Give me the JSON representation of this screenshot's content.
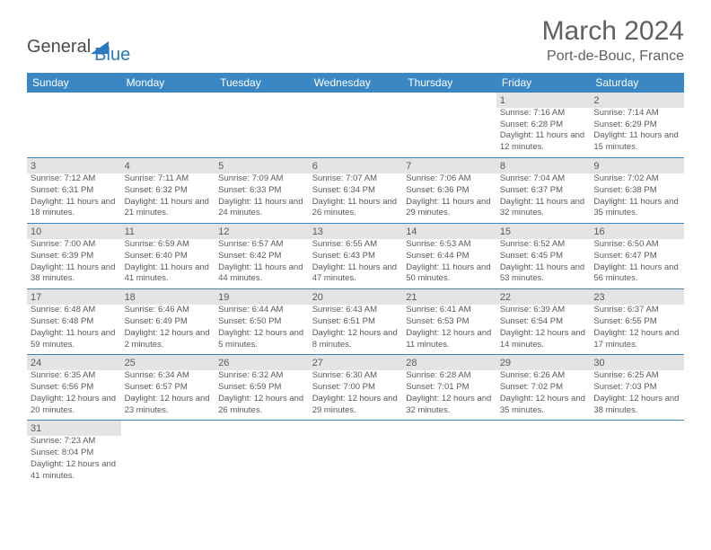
{
  "brand": {
    "part1": "General",
    "part2": "Blue"
  },
  "title": "March 2024",
  "location": "Port-de-Bouc, France",
  "colors": {
    "header_bg": "#3a87c4",
    "header_fg": "#ffffff",
    "daynum_bg": "#e4e4e4",
    "row_divider": "#3a87c4",
    "text": "#5a5a5a",
    "brand_blue": "#2a78bd",
    "brand_gray": "#4a4a4a"
  },
  "weekdays": [
    "Sunday",
    "Monday",
    "Tuesday",
    "Wednesday",
    "Thursday",
    "Friday",
    "Saturday"
  ],
  "weeks": [
    [
      null,
      null,
      null,
      null,
      null,
      {
        "n": "1",
        "sr": "7:16 AM",
        "ss": "6:28 PM",
        "dl": "11 hours and 12 minutes."
      },
      {
        "n": "2",
        "sr": "7:14 AM",
        "ss": "6:29 PM",
        "dl": "11 hours and 15 minutes."
      }
    ],
    [
      {
        "n": "3",
        "sr": "7:12 AM",
        "ss": "6:31 PM",
        "dl": "11 hours and 18 minutes."
      },
      {
        "n": "4",
        "sr": "7:11 AM",
        "ss": "6:32 PM",
        "dl": "11 hours and 21 minutes."
      },
      {
        "n": "5",
        "sr": "7:09 AM",
        "ss": "6:33 PM",
        "dl": "11 hours and 24 minutes."
      },
      {
        "n": "6",
        "sr": "7:07 AM",
        "ss": "6:34 PM",
        "dl": "11 hours and 26 minutes."
      },
      {
        "n": "7",
        "sr": "7:06 AM",
        "ss": "6:36 PM",
        "dl": "11 hours and 29 minutes."
      },
      {
        "n": "8",
        "sr": "7:04 AM",
        "ss": "6:37 PM",
        "dl": "11 hours and 32 minutes."
      },
      {
        "n": "9",
        "sr": "7:02 AM",
        "ss": "6:38 PM",
        "dl": "11 hours and 35 minutes."
      }
    ],
    [
      {
        "n": "10",
        "sr": "7:00 AM",
        "ss": "6:39 PM",
        "dl": "11 hours and 38 minutes."
      },
      {
        "n": "11",
        "sr": "6:59 AM",
        "ss": "6:40 PM",
        "dl": "11 hours and 41 minutes."
      },
      {
        "n": "12",
        "sr": "6:57 AM",
        "ss": "6:42 PM",
        "dl": "11 hours and 44 minutes."
      },
      {
        "n": "13",
        "sr": "6:55 AM",
        "ss": "6:43 PM",
        "dl": "11 hours and 47 minutes."
      },
      {
        "n": "14",
        "sr": "6:53 AM",
        "ss": "6:44 PM",
        "dl": "11 hours and 50 minutes."
      },
      {
        "n": "15",
        "sr": "6:52 AM",
        "ss": "6:45 PM",
        "dl": "11 hours and 53 minutes."
      },
      {
        "n": "16",
        "sr": "6:50 AM",
        "ss": "6:47 PM",
        "dl": "11 hours and 56 minutes."
      }
    ],
    [
      {
        "n": "17",
        "sr": "6:48 AM",
        "ss": "6:48 PM",
        "dl": "11 hours and 59 minutes."
      },
      {
        "n": "18",
        "sr": "6:46 AM",
        "ss": "6:49 PM",
        "dl": "12 hours and 2 minutes."
      },
      {
        "n": "19",
        "sr": "6:44 AM",
        "ss": "6:50 PM",
        "dl": "12 hours and 5 minutes."
      },
      {
        "n": "20",
        "sr": "6:43 AM",
        "ss": "6:51 PM",
        "dl": "12 hours and 8 minutes."
      },
      {
        "n": "21",
        "sr": "6:41 AM",
        "ss": "6:53 PM",
        "dl": "12 hours and 11 minutes."
      },
      {
        "n": "22",
        "sr": "6:39 AM",
        "ss": "6:54 PM",
        "dl": "12 hours and 14 minutes."
      },
      {
        "n": "23",
        "sr": "6:37 AM",
        "ss": "6:55 PM",
        "dl": "12 hours and 17 minutes."
      }
    ],
    [
      {
        "n": "24",
        "sr": "6:35 AM",
        "ss": "6:56 PM",
        "dl": "12 hours and 20 minutes."
      },
      {
        "n": "25",
        "sr": "6:34 AM",
        "ss": "6:57 PM",
        "dl": "12 hours and 23 minutes."
      },
      {
        "n": "26",
        "sr": "6:32 AM",
        "ss": "6:59 PM",
        "dl": "12 hours and 26 minutes."
      },
      {
        "n": "27",
        "sr": "6:30 AM",
        "ss": "7:00 PM",
        "dl": "12 hours and 29 minutes."
      },
      {
        "n": "28",
        "sr": "6:28 AM",
        "ss": "7:01 PM",
        "dl": "12 hours and 32 minutes."
      },
      {
        "n": "29",
        "sr": "6:26 AM",
        "ss": "7:02 PM",
        "dl": "12 hours and 35 minutes."
      },
      {
        "n": "30",
        "sr": "6:25 AM",
        "ss": "7:03 PM",
        "dl": "12 hours and 38 minutes."
      }
    ],
    [
      {
        "n": "31",
        "sr": "7:23 AM",
        "ss": "8:04 PM",
        "dl": "12 hours and 41 minutes."
      },
      null,
      null,
      null,
      null,
      null,
      null
    ]
  ],
  "labels": {
    "sunrise": "Sunrise: ",
    "sunset": "Sunset: ",
    "daylight": "Daylight: "
  }
}
